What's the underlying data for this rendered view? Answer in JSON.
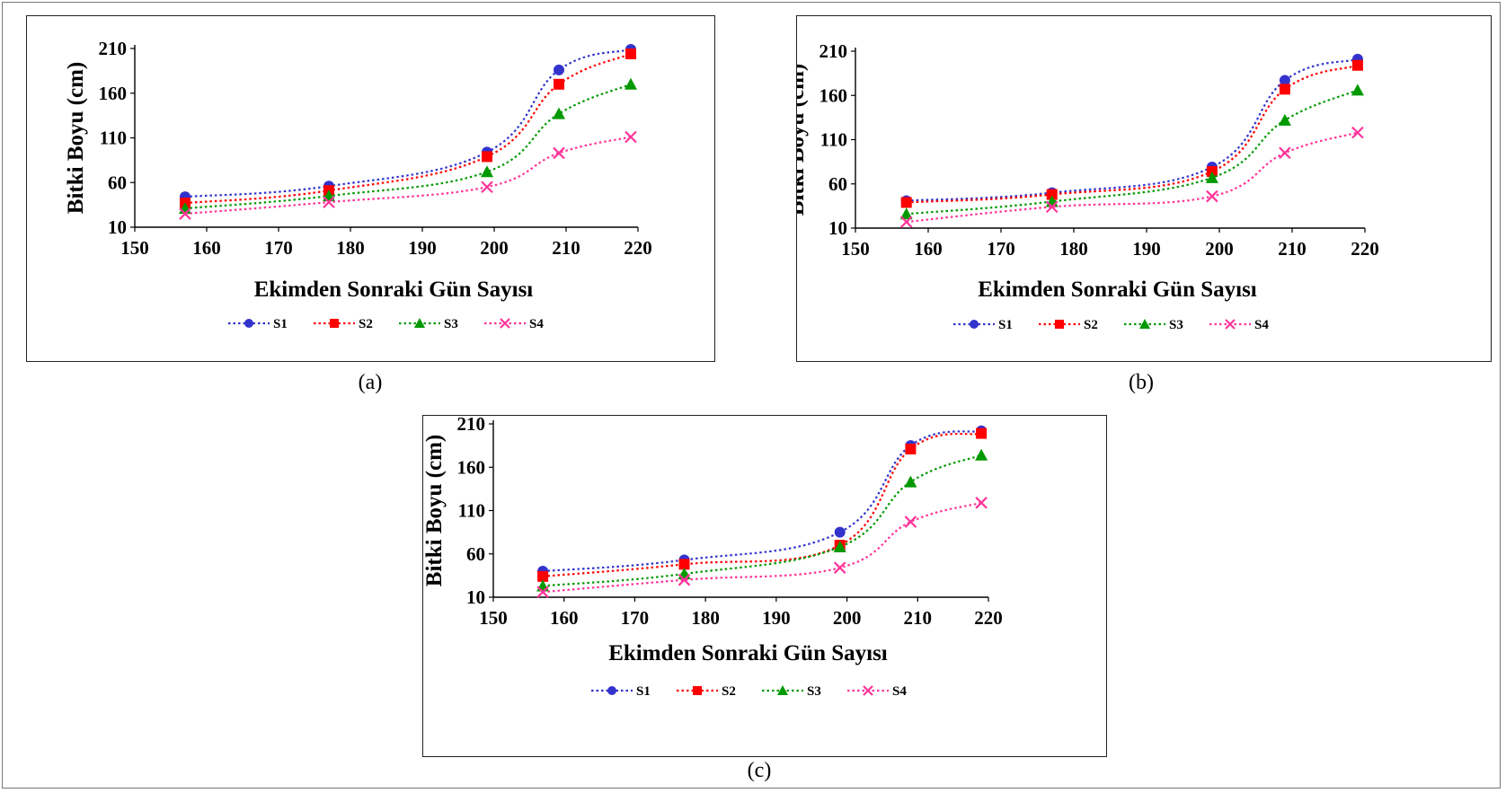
{
  "panels": [
    {
      "caption": "(a)"
    },
    {
      "caption": "(b)"
    },
    {
      "caption": "(c)"
    }
  ],
  "colors": {
    "S1": "#3333cc",
    "S2": "#ff0000",
    "S3": "#009900",
    "S4": "#ff3399"
  },
  "markers": {
    "S1": "circle",
    "S2": "square",
    "S3": "triangle",
    "S4": "x"
  },
  "chart_data": [
    {
      "type": "line",
      "title": "",
      "xlabel": "Ekimden Sonraki Gün Sayısı",
      "ylabel": "Bitki Boyu (cm)",
      "xlim": [
        150,
        220
      ],
      "ylim": [
        10,
        210
      ],
      "xticks": [
        150,
        160,
        170,
        180,
        190,
        200,
        210,
        220
      ],
      "yticks": [
        10,
        60,
        110,
        160,
        210
      ],
      "legend": "bottom",
      "grid": false,
      "x": [
        157,
        177,
        199,
        209,
        219
      ],
      "series": [
        {
          "name": "S1",
          "values": [
            44,
            56,
            94,
            186,
            209
          ]
        },
        {
          "name": "S2",
          "values": [
            37,
            51,
            89,
            170,
            204
          ]
        },
        {
          "name": "S3",
          "values": [
            31,
            45,
            72,
            137,
            170
          ]
        },
        {
          "name": "S4",
          "values": [
            25,
            38,
            55,
            93,
            111
          ]
        }
      ]
    },
    {
      "type": "line",
      "title": "",
      "xlabel": "Ekimden Sonraki Gün Sayısı",
      "ylabel": "Bitki Boyu (cm)",
      "xlim": [
        150,
        220
      ],
      "ylim": [
        10,
        210
      ],
      "xticks": [
        150,
        160,
        170,
        180,
        190,
        200,
        210,
        220
      ],
      "yticks": [
        10,
        60,
        110,
        160,
        210
      ],
      "legend": "bottom",
      "grid": false,
      "x": [
        157,
        177,
        199,
        209,
        219
      ],
      "series": [
        {
          "name": "S1",
          "values": [
            41,
            50,
            79,
            177,
            201
          ]
        },
        {
          "name": "S2",
          "values": [
            39,
            48,
            74,
            167,
            194
          ]
        },
        {
          "name": "S3",
          "values": [
            26,
            40,
            67,
            132,
            166
          ]
        },
        {
          "name": "S4",
          "values": [
            17,
            34,
            46,
            95,
            118
          ]
        }
      ]
    },
    {
      "type": "line",
      "title": "",
      "xlabel": "Ekimden Sonraki Gün Sayısı",
      "ylabel": "Bitki Boyu (cm)",
      "xlim": [
        150,
        220
      ],
      "ylim": [
        10,
        210
      ],
      "xticks": [
        150,
        160,
        170,
        180,
        190,
        200,
        210,
        220
      ],
      "yticks": [
        10,
        60,
        110,
        160,
        210
      ],
      "legend": "bottom",
      "grid": false,
      "x": [
        157,
        177,
        199,
        209,
        219
      ],
      "series": [
        {
          "name": "S1",
          "values": [
            40,
            53,
            85,
            185,
            202
          ]
        },
        {
          "name": "S2",
          "values": [
            34,
            48,
            70,
            181,
            199
          ]
        },
        {
          "name": "S3",
          "values": [
            23,
            37,
            68,
            143,
            174
          ]
        },
        {
          "name": "S4",
          "values": [
            16,
            30,
            44,
            97,
            119
          ]
        }
      ]
    }
  ]
}
